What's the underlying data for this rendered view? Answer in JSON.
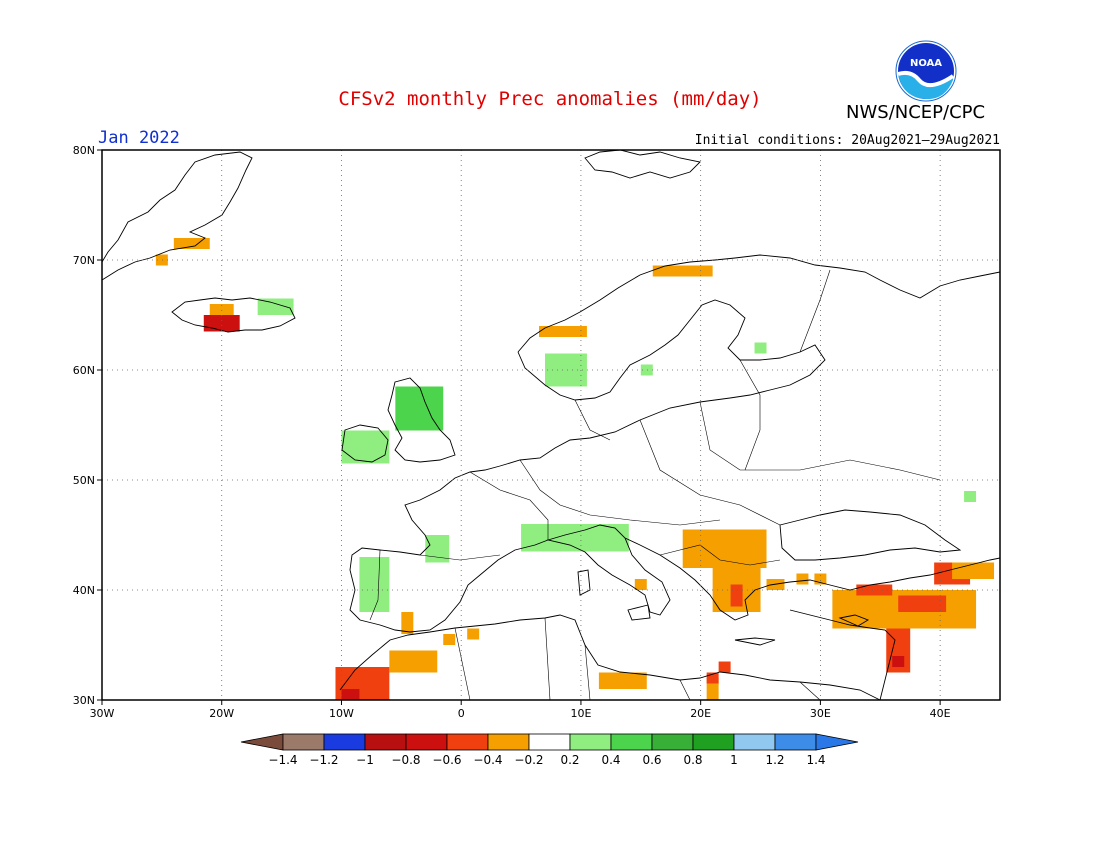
{
  "title": "CFSv2 monthly Prec anomalies (mm/day)",
  "month_label": "Jan 2022",
  "initial_conditions": "Initial conditions: 20Aug2021–29Aug2021",
  "organization": "NWS/NCEP/CPC",
  "logo_text": "NOAA",
  "map": {
    "lon_range": [
      -30,
      45
    ],
    "lat_range": [
      30,
      80
    ],
    "lon_ticks": [
      {
        "value": -30,
        "label": "30W"
      },
      {
        "value": -20,
        "label": "20W"
      },
      {
        "value": -10,
        "label": "10W"
      },
      {
        "value": 0,
        "label": "0"
      },
      {
        "value": 10,
        "label": "10E"
      },
      {
        "value": 20,
        "label": "20E"
      },
      {
        "value": 30,
        "label": "30E"
      },
      {
        "value": 40,
        "label": "40E"
      }
    ],
    "lat_ticks": [
      {
        "value": 30,
        "label": "30N"
      },
      {
        "value": 40,
        "label": "40N"
      },
      {
        "value": 50,
        "label": "50N"
      },
      {
        "value": 60,
        "label": "60N"
      },
      {
        "value": 70,
        "label": "70N"
      },
      {
        "value": 80,
        "label": "80N"
      }
    ],
    "gridlines": "dotted"
  },
  "colorbar": {
    "bins": [
      {
        "color": "#9c7a6a"
      },
      {
        "color": "#1a3be0"
      },
      {
        "color": "#b81010"
      },
      {
        "color": "#cc1010"
      },
      {
        "color": "#f04010"
      },
      {
        "color": "#f5a000"
      },
      {
        "color": "#ffffff"
      },
      {
        "color": "#90ee80"
      },
      {
        "color": "#4cd44c"
      },
      {
        "color": "#38b038"
      },
      {
        "color": "#20a020"
      },
      {
        "color": "#90c8f0"
      },
      {
        "color": "#3c8ce8"
      }
    ],
    "left_arrow_color": "#7a4a3a",
    "right_arrow_color": "#2a78e8",
    "labels": [
      "−1.4",
      "−1.2",
      "−1",
      "−0.8",
      "−0.6",
      "−0.4",
      "−0.2",
      "0.2",
      "0.4",
      "0.6",
      "0.8",
      "1",
      "1.2",
      "1.4"
    ]
  },
  "anomaly_regions": [
    {
      "lon": -24,
      "lat": 71,
      "w": 3,
      "h": 1,
      "color": "#f5a000"
    },
    {
      "lon": -25.5,
      "lat": 69.5,
      "w": 1,
      "h": 1,
      "color": "#f5a000"
    },
    {
      "lon": -21.5,
      "lat": 63.5,
      "w": 3,
      "h": 1.5,
      "color": "#cc1010"
    },
    {
      "lon": -21,
      "lat": 65,
      "w": 2,
      "h": 1,
      "color": "#f5a000"
    },
    {
      "lon": -17,
      "lat": 65,
      "w": 3,
      "h": 1.5,
      "color": "#90ee80"
    },
    {
      "lon": 6.5,
      "lat": 63,
      "w": 4,
      "h": 1,
      "color": "#f5a000"
    },
    {
      "lon": 16,
      "lat": 68.5,
      "w": 5,
      "h": 1,
      "color": "#f5a000"
    },
    {
      "lon": 7,
      "lat": 58.5,
      "w": 3.5,
      "h": 3,
      "color": "#90ee80"
    },
    {
      "lon": 24.5,
      "lat": 61.5,
      "w": 1,
      "h": 1,
      "color": "#90ee80"
    },
    {
      "lon": 15,
      "lat": 59.5,
      "w": 1,
      "h": 1,
      "color": "#90ee80"
    },
    {
      "lon": -5.5,
      "lat": 54.5,
      "w": 4,
      "h": 4,
      "color": "#4cd44c"
    },
    {
      "lon": -10,
      "lat": 51.5,
      "w": 4,
      "h": 3,
      "color": "#90ee80"
    },
    {
      "lon": -3,
      "lat": 42.5,
      "w": 2,
      "h": 2.5,
      "color": "#90ee80"
    },
    {
      "lon": -8.5,
      "lat": 38,
      "w": 2.5,
      "h": 5,
      "color": "#90ee80"
    },
    {
      "lon": 5,
      "lat": 43.5,
      "w": 9,
      "h": 2.5,
      "color": "#90ee80"
    },
    {
      "lon": 42,
      "lat": 48,
      "w": 1,
      "h": 1,
      "color": "#90ee80"
    },
    {
      "lon": 18.5,
      "lat": 42,
      "w": 7,
      "h": 3.5,
      "color": "#f5a000"
    },
    {
      "lon": 21,
      "lat": 38,
      "w": 4,
      "h": 4,
      "color": "#f5a000"
    },
    {
      "lon": 22.5,
      "lat": 38.5,
      "w": 1,
      "h": 2,
      "color": "#f04010"
    },
    {
      "lon": 14.5,
      "lat": 40,
      "w": 1,
      "h": 1,
      "color": "#f5a000"
    },
    {
      "lon": 31,
      "lat": 36.5,
      "w": 12,
      "h": 3.5,
      "color": "#f5a000"
    },
    {
      "lon": 33,
      "lat": 39.5,
      "w": 3,
      "h": 1,
      "color": "#f04010"
    },
    {
      "lon": 36.5,
      "lat": 38,
      "w": 4,
      "h": 1.5,
      "color": "#f04010"
    },
    {
      "lon": 39.5,
      "lat": 40.5,
      "w": 3,
      "h": 2,
      "color": "#f04010"
    },
    {
      "lon": 41,
      "lat": 41,
      "w": 3.5,
      "h": 1.5,
      "color": "#f5a000"
    },
    {
      "lon": 35.5,
      "lat": 32.5,
      "w": 2,
      "h": 4,
      "color": "#f04010"
    },
    {
      "lon": 36,
      "lat": 33,
      "w": 1,
      "h": 1,
      "color": "#cc1010"
    },
    {
      "lon": -10.5,
      "lat": 30,
      "w": 4.5,
      "h": 3,
      "color": "#f04010"
    },
    {
      "lon": -10,
      "lat": 30,
      "w": 1.5,
      "h": 1,
      "color": "#cc1010"
    },
    {
      "lon": -6,
      "lat": 32.5,
      "w": 4,
      "h": 2,
      "color": "#f5a000"
    },
    {
      "lon": -5,
      "lat": 36,
      "w": 1,
      "h": 2,
      "color": "#f5a000"
    },
    {
      "lon": -1.5,
      "lat": 35,
      "w": 1,
      "h": 1,
      "color": "#f5a000"
    },
    {
      "lon": 0.5,
      "lat": 35.5,
      "w": 1,
      "h": 1,
      "color": "#f5a000"
    },
    {
      "lon": 11.5,
      "lat": 31,
      "w": 4,
      "h": 1.5,
      "color": "#f5a000"
    },
    {
      "lon": 20.5,
      "lat": 30,
      "w": 1,
      "h": 2,
      "color": "#f5a000"
    },
    {
      "lon": 20.5,
      "lat": 31.5,
      "w": 1,
      "h": 1,
      "color": "#f04010"
    },
    {
      "lon": 21.5,
      "lat": 32.5,
      "w": 1,
      "h": 1,
      "color": "#f04010"
    },
    {
      "lon": 25.5,
      "lat": 40,
      "w": 1.5,
      "h": 1,
      "color": "#f5a000"
    },
    {
      "lon": 28,
      "lat": 40.5,
      "w": 1,
      "h": 1,
      "color": "#f5a000"
    },
    {
      "lon": 29.5,
      "lat": 40.5,
      "w": 1,
      "h": 1,
      "color": "#f5a000"
    }
  ]
}
